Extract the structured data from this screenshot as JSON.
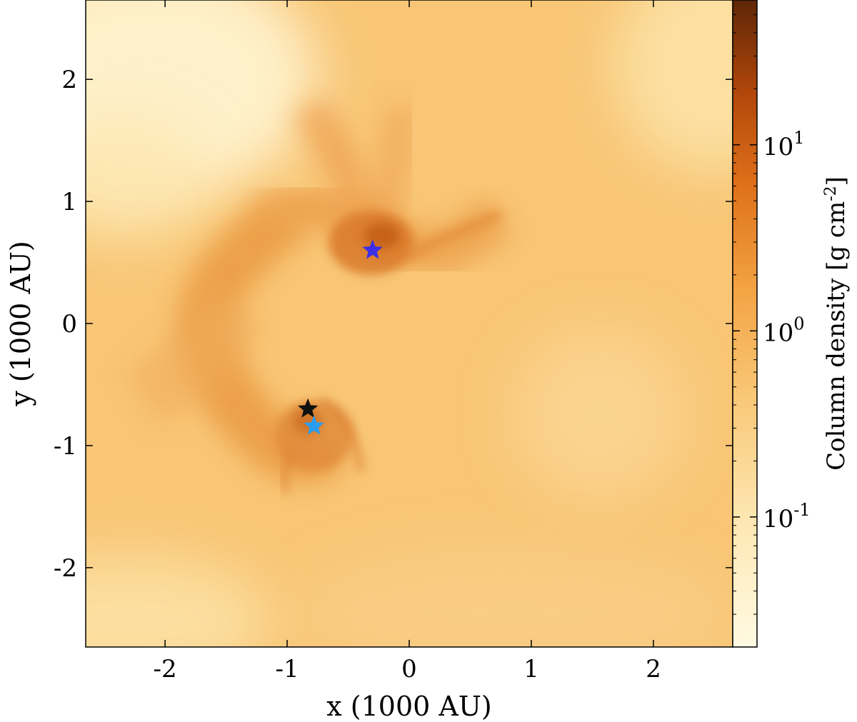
{
  "chart_data": {
    "type": "heatmap",
    "colormap": "sequential orange (light cream to dark brown)",
    "colors": {
      "low": "#fff7d8",
      "mid": "#f5b35b",
      "high": "#6b2a05",
      "background": "#f8c170"
    },
    "xlabel": "x (1000 AU)",
    "ylabel": "y (1000 AU)",
    "xlim": [
      -2.65,
      2.65
    ],
    "ylim": [
      -2.65,
      2.65
    ],
    "x_ticks": [
      -2,
      -1,
      0,
      1,
      2
    ],
    "y_ticks": [
      -2,
      -1,
      0,
      1,
      2
    ],
    "x_tick_labels": [
      "-2",
      "-1",
      "0",
      "1",
      "2"
    ],
    "y_tick_labels": [
      "-2",
      "-1",
      "0",
      "1",
      "2"
    ],
    "colorbar": {
      "label": "Column density [g cm-2]",
      "label_main": "Column density [g cm",
      "label_sup": "-2",
      "label_end": "]",
      "scale": "log",
      "range": [
        0.02,
        60
      ],
      "ticks": [
        {
          "value": 10,
          "base": "10",
          "exp": "1"
        },
        {
          "value": 1,
          "base": "10",
          "exp": "0"
        },
        {
          "value": 0.1,
          "base": "10",
          "exp": "-1"
        }
      ]
    },
    "stars": [
      {
        "x": -0.3,
        "y": 0.6,
        "color": "#3a2ee6"
      },
      {
        "x": -0.83,
        "y": -0.7,
        "color": "#111111"
      },
      {
        "x": -0.78,
        "y": -0.84,
        "color": "#2a9df0"
      }
    ]
  }
}
